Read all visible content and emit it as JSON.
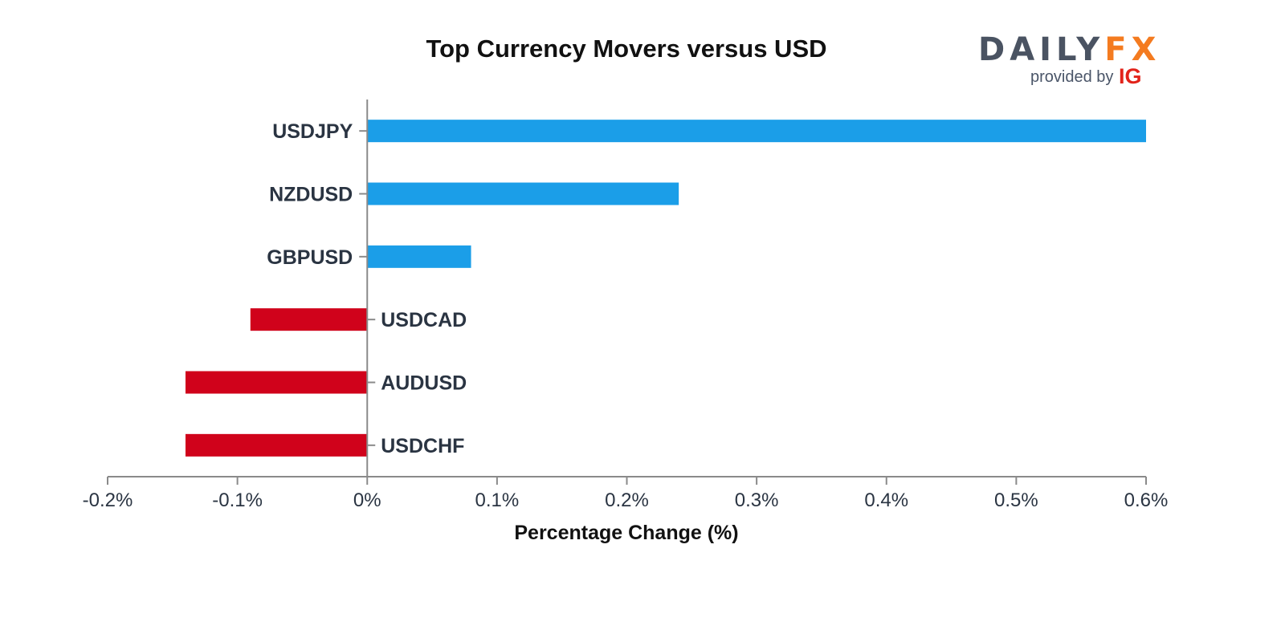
{
  "logo": {
    "brand_left": "DAILY",
    "brand_right": "FX",
    "provided_by": "provided by",
    "ig": "IG",
    "colors": {
      "brand_left": "#4a5362",
      "brand_right": "#f47b20",
      "ig": "#e2231a"
    }
  },
  "chart_data": {
    "type": "bar",
    "orientation": "horizontal",
    "title": "Top Currency Movers versus USD",
    "xlabel": "Percentage Change (%)",
    "ylabel": "",
    "xlim": [
      -0.2,
      0.6
    ],
    "xticks": [
      -0.2,
      -0.1,
      0,
      0.1,
      0.2,
      0.3,
      0.4,
      0.5,
      0.6
    ],
    "xtick_labels": [
      "-0.2%",
      "-0.1%",
      "0%",
      "0.1%",
      "0.2%",
      "0.3%",
      "0.4%",
      "0.5%",
      "0.6%"
    ],
    "categories": [
      "USDJPY",
      "NZDUSD",
      "GBPUSD",
      "USDCAD",
      "AUDUSD",
      "USDCHF"
    ],
    "values": [
      0.6,
      0.24,
      0.08,
      -0.09,
      -0.14,
      -0.14
    ],
    "colors": {
      "positive": "#1b9ee8",
      "negative": "#d0021b",
      "axis": "#8a8a8a"
    },
    "grid": false,
    "legend": "none"
  }
}
